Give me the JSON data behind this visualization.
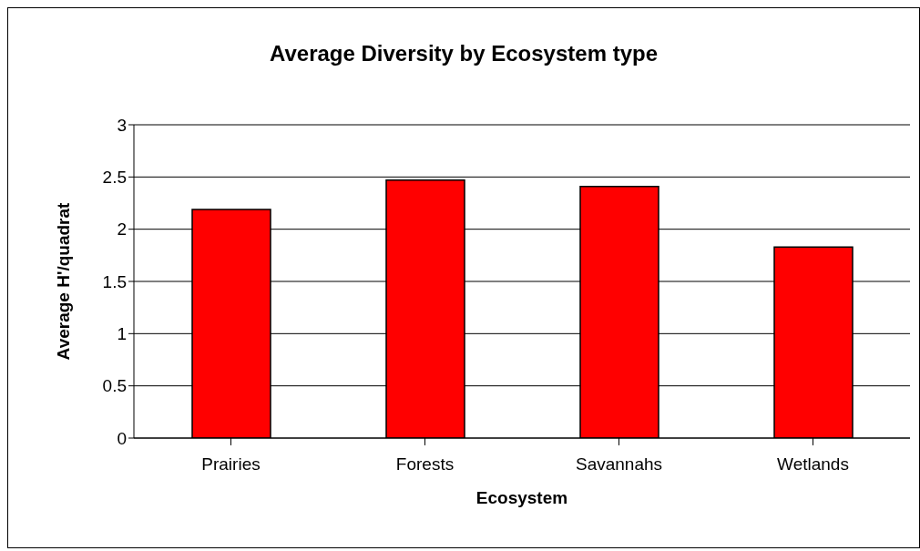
{
  "chart_data": {
    "type": "bar",
    "title": "Average Diversity by Ecosystem type",
    "xlabel": "Ecosystem",
    "ylabel": "Average H'/quadrat",
    "categories": [
      "Prairies",
      "Forests",
      "Savannahs",
      "Wetlands"
    ],
    "values": [
      2.19,
      2.47,
      2.41,
      1.83
    ],
    "color": "#ff0000",
    "ylim": [
      0,
      3
    ],
    "yticks": [
      0,
      0.5,
      1,
      1.5,
      2,
      2.5,
      3
    ],
    "grid": "y"
  }
}
